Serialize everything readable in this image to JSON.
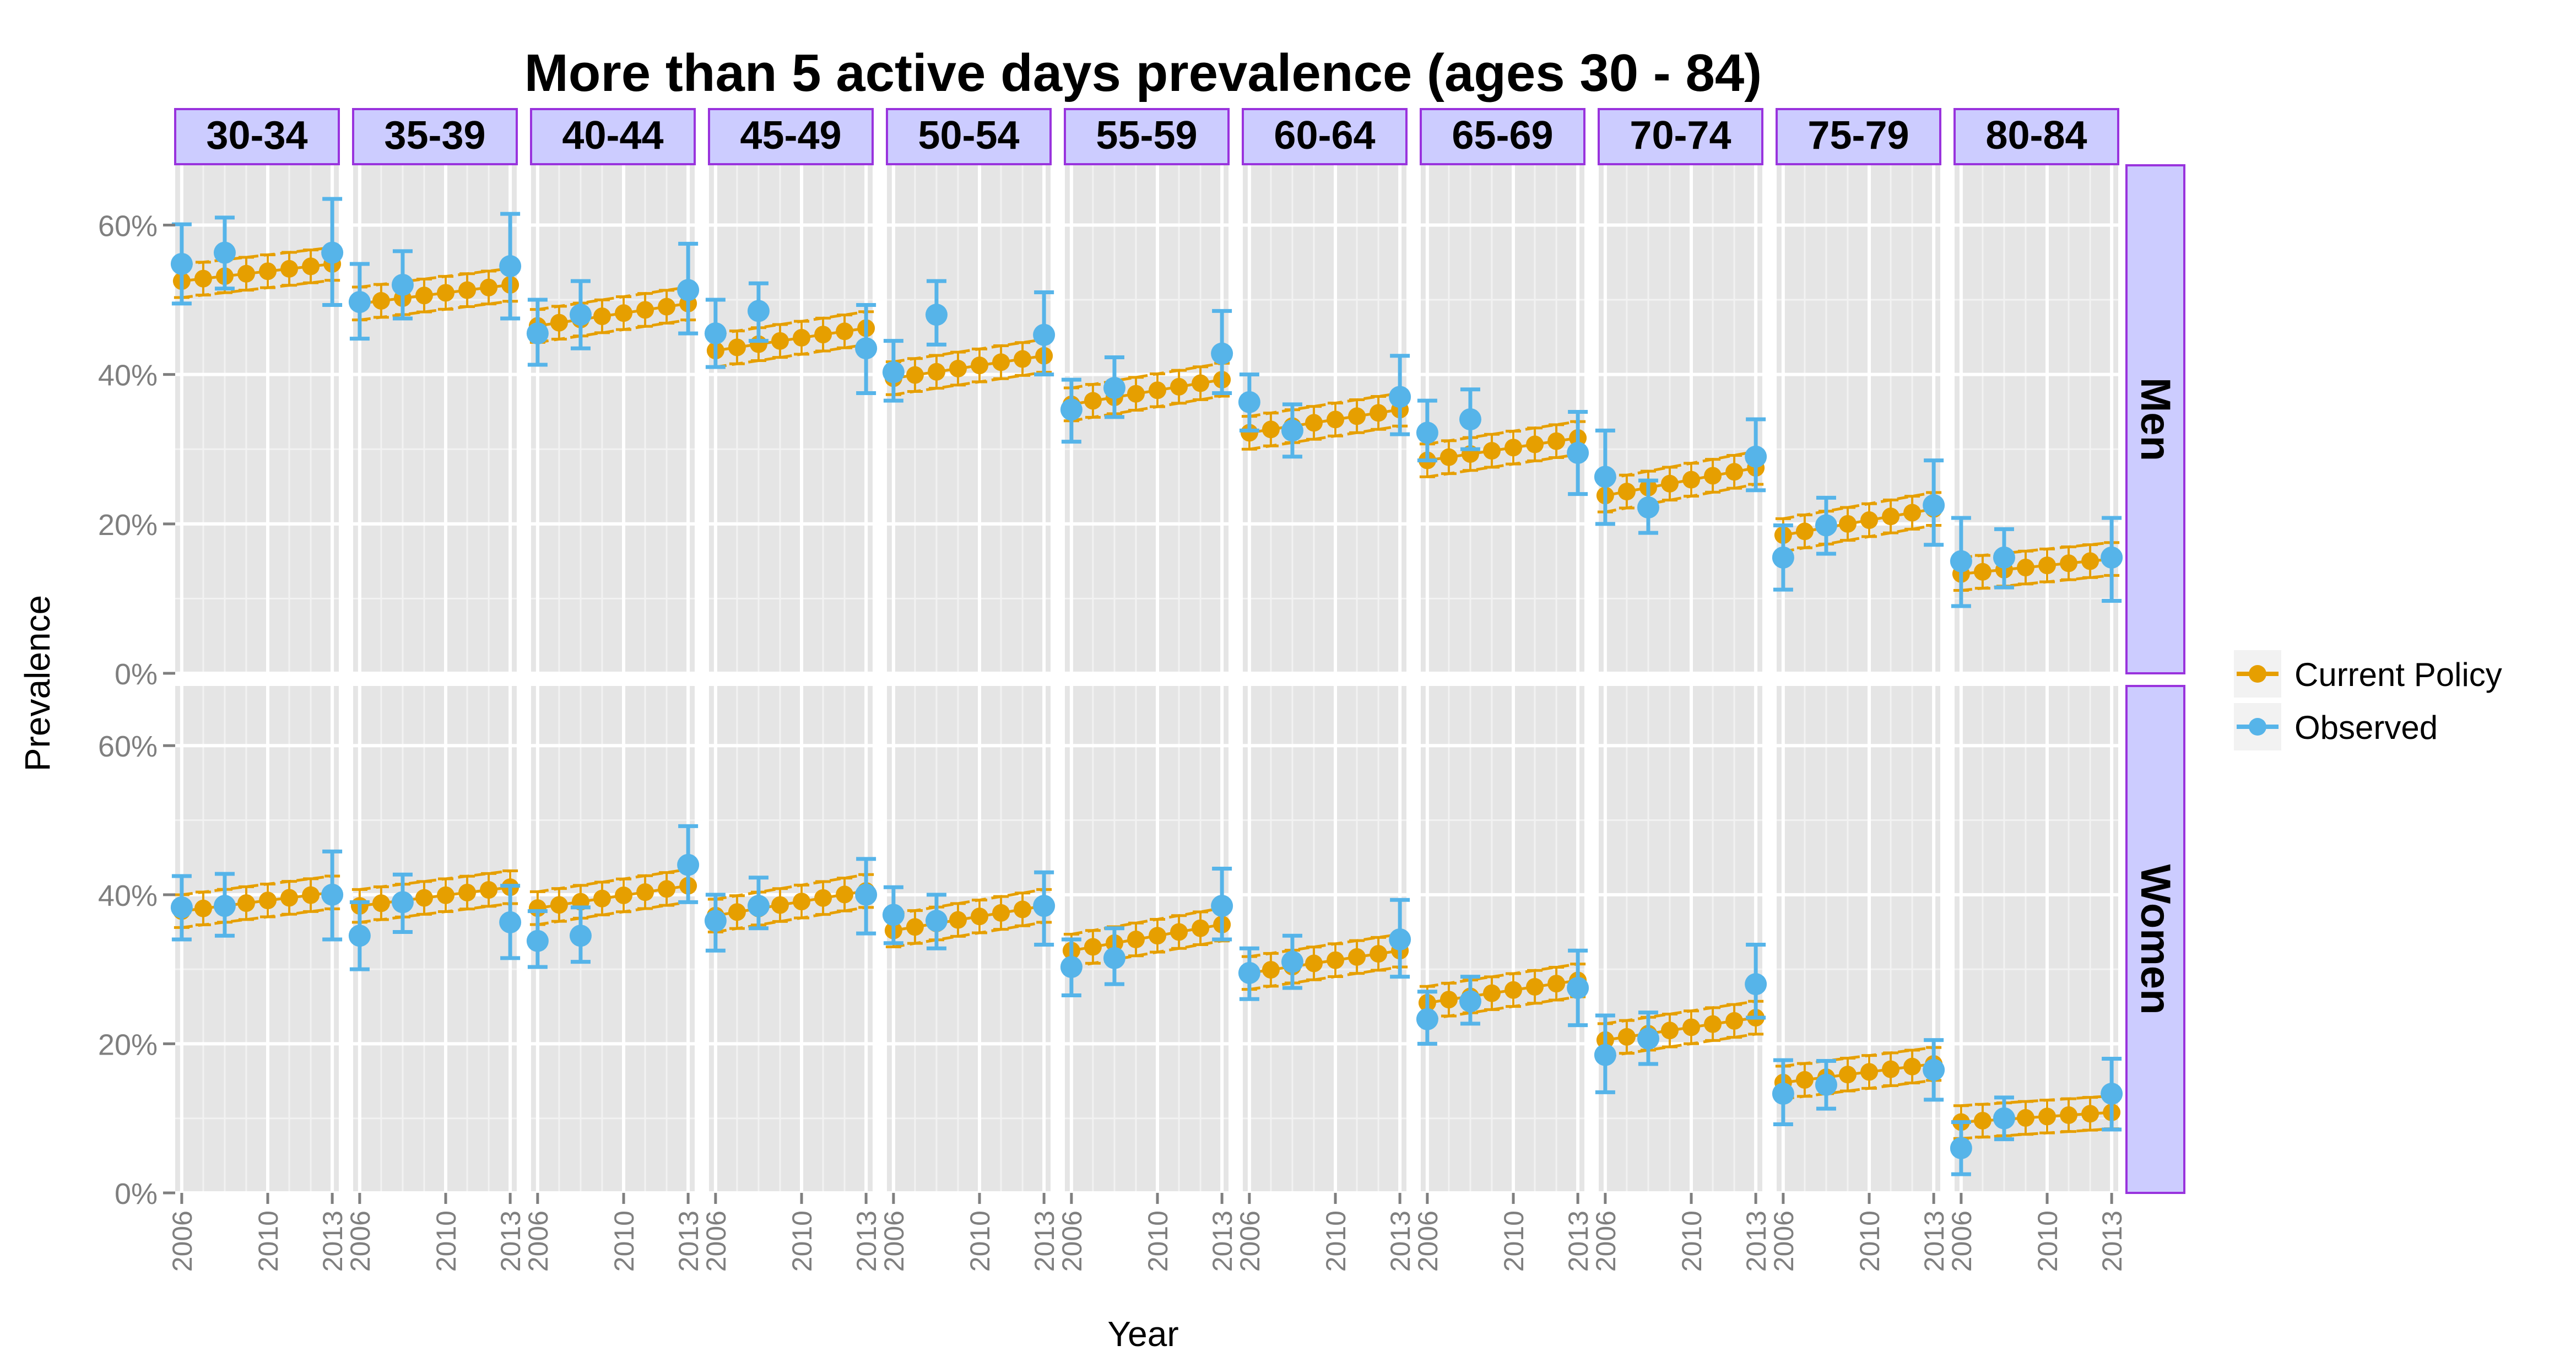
{
  "chart_data": {
    "type": "line",
    "title": "More than 5 active days prevalence (ages 30 - 84)",
    "xlabel": "Year",
    "ylabel": "Prevalence",
    "ylim": [
      0,
      0.68
    ],
    "y_ticks": [
      0,
      0.2,
      0.4,
      0.6
    ],
    "y_tick_labels": [
      "0%",
      "20%",
      "40%",
      "60%"
    ],
    "x_range": [
      2006,
      2013
    ],
    "x_ticks": [
      2006,
      2010,
      2013
    ],
    "x_tick_labels": [
      "2006",
      "2010",
      "2013"
    ],
    "grid": true,
    "legend_position": "right",
    "column_panels": [
      "30-34",
      "35-39",
      "40-44",
      "45-49",
      "50-54",
      "55-59",
      "60-64",
      "65-69",
      "70-74",
      "75-79",
      "80-84"
    ],
    "row_panels": [
      "Men",
      "Women"
    ],
    "colors": {
      "Current Policy": "#E69F00",
      "Observed": "#56B4E9"
    },
    "series": [
      {
        "name": "Current Policy",
        "years": [
          2006,
          2007,
          2008,
          2009,
          2010,
          2011,
          2012,
          2013
        ]
      },
      {
        "name": "Observed",
        "years": [
          2006,
          2008,
          2013
        ]
      }
    ],
    "policy": {
      "Men": [
        [
          0.525,
          0.548
        ],
        [
          0.495,
          0.52
        ],
        [
          0.465,
          0.495
        ],
        [
          0.432,
          0.462
        ],
        [
          0.395,
          0.425
        ],
        [
          0.36,
          0.393
        ],
        [
          0.322,
          0.353
        ],
        [
          0.285,
          0.315
        ],
        [
          0.238,
          0.275
        ],
        [
          0.185,
          0.22
        ],
        [
          0.133,
          0.153
        ]
      ],
      "Women": [
        [
          0.378,
          0.403
        ],
        [
          0.385,
          0.41
        ],
        [
          0.382,
          0.412
        ],
        [
          0.372,
          0.405
        ],
        [
          0.352,
          0.385
        ],
        [
          0.325,
          0.36
        ],
        [
          0.295,
          0.325
        ],
        [
          0.255,
          0.285
        ],
        [
          0.205,
          0.235
        ],
        [
          0.148,
          0.173
        ],
        [
          0.095,
          0.108
        ]
      ]
    },
    "policy_band": 0.022,
    "observed": {
      "Men": [
        [
          [
            0.548,
            0.495,
            0.601
          ],
          [
            0.563,
            0.515,
            0.61
          ],
          [
            0.563,
            0.493,
            0.635
          ]
        ],
        [
          [
            0.497,
            0.448,
            0.548
          ],
          [
            0.52,
            0.475,
            0.565
          ],
          [
            0.545,
            0.475,
            0.615
          ]
        ],
        [
          [
            0.455,
            0.413,
            0.5
          ],
          [
            0.48,
            0.435,
            0.525
          ],
          [
            0.513,
            0.455,
            0.575
          ]
        ],
        [
          [
            0.455,
            0.41,
            0.5
          ],
          [
            0.485,
            0.445,
            0.522
          ],
          [
            0.435,
            0.375,
            0.493
          ]
        ],
        [
          [
            0.403,
            0.365,
            0.445
          ],
          [
            0.48,
            0.44,
            0.525
          ],
          [
            0.453,
            0.4,
            0.51
          ]
        ],
        [
          [
            0.353,
            0.31,
            0.393
          ],
          [
            0.382,
            0.343,
            0.423
          ],
          [
            0.428,
            0.375,
            0.485
          ]
        ],
        [
          [
            0.363,
            0.325,
            0.4
          ],
          [
            0.325,
            0.29,
            0.36
          ],
          [
            0.37,
            0.32,
            0.425
          ]
        ],
        [
          [
            0.322,
            0.285,
            0.365
          ],
          [
            0.34,
            0.3,
            0.38
          ],
          [
            0.295,
            0.24,
            0.35
          ]
        ],
        [
          [
            0.263,
            0.2,
            0.325
          ],
          [
            0.222,
            0.188,
            0.258
          ],
          [
            0.29,
            0.245,
            0.34
          ]
        ],
        [
          [
            0.155,
            0.112,
            0.198
          ],
          [
            0.198,
            0.16,
            0.235
          ],
          [
            0.225,
            0.172,
            0.285
          ]
        ],
        [
          [
            0.15,
            0.09,
            0.208
          ],
          [
            0.155,
            0.115,
            0.193
          ],
          [
            0.155,
            0.097,
            0.208
          ]
        ]
      ],
      "Women": [
        [
          [
            0.383,
            0.34,
            0.425
          ],
          [
            0.385,
            0.345,
            0.428
          ],
          [
            0.4,
            0.34,
            0.458
          ]
        ],
        [
          [
            0.345,
            0.3,
            0.39
          ],
          [
            0.39,
            0.35,
            0.427
          ],
          [
            0.363,
            0.315,
            0.412
          ]
        ],
        [
          [
            0.338,
            0.303,
            0.378
          ],
          [
            0.345,
            0.31,
            0.383
          ],
          [
            0.44,
            0.39,
            0.492
          ]
        ],
        [
          [
            0.365,
            0.325,
            0.4
          ],
          [
            0.385,
            0.355,
            0.423
          ],
          [
            0.4,
            0.348,
            0.448
          ]
        ],
        [
          [
            0.373,
            0.335,
            0.41
          ],
          [
            0.365,
            0.328,
            0.4
          ],
          [
            0.385,
            0.333,
            0.43
          ]
        ],
        [
          [
            0.303,
            0.265,
            0.34
          ],
          [
            0.315,
            0.28,
            0.355
          ],
          [
            0.385,
            0.34,
            0.435
          ]
        ],
        [
          [
            0.295,
            0.26,
            0.328
          ],
          [
            0.31,
            0.275,
            0.345
          ],
          [
            0.34,
            0.29,
            0.393
          ]
        ],
        [
          [
            0.233,
            0.2,
            0.27
          ],
          [
            0.257,
            0.227,
            0.29
          ],
          [
            0.275,
            0.225,
            0.325
          ]
        ],
        [
          [
            0.185,
            0.135,
            0.238
          ],
          [
            0.207,
            0.173,
            0.242
          ],
          [
            0.28,
            0.235,
            0.333
          ]
        ],
        [
          [
            0.133,
            0.092,
            0.178
          ],
          [
            0.145,
            0.113,
            0.177
          ],
          [
            0.165,
            0.125,
            0.205
          ]
        ],
        [
          [
            0.06,
            0.025,
            0.095
          ],
          [
            0.1,
            0.072,
            0.128
          ],
          [
            0.133,
            0.085,
            0.18
          ]
        ]
      ]
    }
  }
}
